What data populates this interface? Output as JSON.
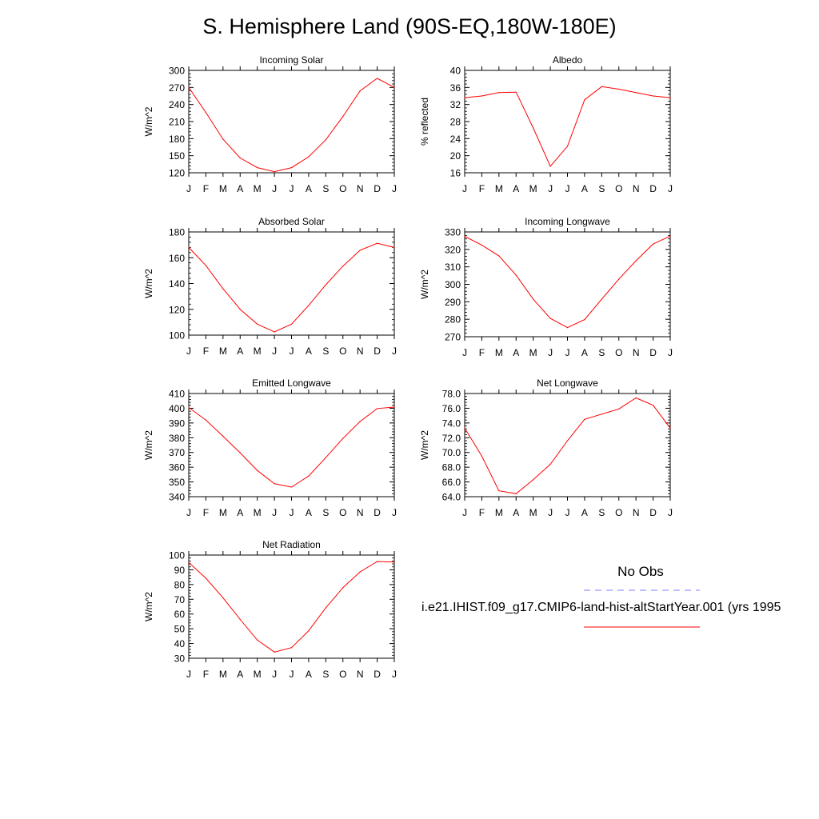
{
  "title": "S. Hemisphere Land (90S-EQ,180W-180E)",
  "months": [
    "J",
    "F",
    "M",
    "A",
    "M",
    "J",
    "J",
    "A",
    "S",
    "O",
    "N",
    "D",
    "J"
  ],
  "colors": {
    "model": "#ff0000",
    "obs": "#7f7fff",
    "axis": "#000000"
  },
  "legend": {
    "obs_label": "No Obs",
    "model_label": "i.e21.IHIST.f09_g17.CMIP6-land-hist-altStartYear.001 (yrs 1995"
  },
  "chart_data": [
    {
      "type": "line",
      "title": "Incoming Solar",
      "ylabel": "W/m^2",
      "ylim": [
        120,
        300
      ],
      "yticks": [
        "120",
        "150",
        "180",
        "210",
        "240",
        "270",
        "300"
      ],
      "categories": [
        "J",
        "F",
        "M",
        "A",
        "M",
        "J",
        "J",
        "A",
        "S",
        "O",
        "N",
        "D",
        "J"
      ],
      "series": [
        {
          "values": [
            270,
            226,
            179,
            146,
            129,
            122,
            129,
            148,
            178,
            219,
            264,
            286,
            270
          ]
        }
      ]
    },
    {
      "type": "line",
      "title": "Albedo",
      "ylabel": "% reflected",
      "ylim": [
        16,
        40
      ],
      "yticks": [
        "16",
        "20",
        "24",
        "28",
        "32",
        "36",
        "40"
      ],
      "categories": [
        "J",
        "F",
        "M",
        "A",
        "M",
        "J",
        "J",
        "A",
        "S",
        "O",
        "N",
        "D",
        "J"
      ],
      "series": [
        {
          "values": [
            33.6,
            34.0,
            34.8,
            34.9,
            26.5,
            17.5,
            22.2,
            33.1,
            36.2,
            35.6,
            34.8,
            34.0,
            33.6
          ]
        }
      ]
    },
    {
      "type": "line",
      "title": "Absorbed Solar",
      "ylabel": "W/m^2",
      "ylim": [
        100,
        180
      ],
      "yticks": [
        "100",
        "120",
        "140",
        "160",
        "180"
      ],
      "categories": [
        "J",
        "F",
        "M",
        "A",
        "M",
        "J",
        "J",
        "A",
        "S",
        "O",
        "N",
        "D",
        "J"
      ],
      "series": [
        {
          "values": [
            168,
            154,
            136,
            120,
            108.5,
            102.5,
            108.5,
            123,
            139,
            153.5,
            165.8,
            171.2,
            168
          ]
        }
      ]
    },
    {
      "type": "line",
      "title": "Incoming Longwave",
      "ylabel": "W/m^2",
      "ylim": [
        270,
        330
      ],
      "yticks": [
        "270",
        "280",
        "290",
        "300",
        "310",
        "320",
        "330"
      ],
      "categories": [
        "J",
        "F",
        "M",
        "A",
        "M",
        "J",
        "J",
        "A",
        "S",
        "O",
        "N",
        "D",
        "J"
      ],
      "series": [
        {
          "values": [
            327.5,
            322.5,
            316.3,
            305.2,
            291.5,
            280.5,
            275.2,
            279.8,
            291.5,
            303,
            313.5,
            323.1,
            327.6
          ]
        }
      ]
    },
    {
      "type": "line",
      "title": "Emitted Longwave",
      "ylabel": "W/m^2",
      "ylim": [
        340,
        410
      ],
      "yticks": [
        "340",
        "350",
        "360",
        "370",
        "380",
        "390",
        "400",
        "410"
      ],
      "categories": [
        "J",
        "F",
        "M",
        "A",
        "M",
        "J",
        "J",
        "A",
        "S",
        "O",
        "N",
        "D",
        "J"
      ],
      "series": [
        {
          "values": [
            400.5,
            392,
            381,
            369.8,
            357.8,
            348.8,
            346.5,
            354,
            366.5,
            379.5,
            391,
            399.8,
            400.8
          ]
        }
      ]
    },
    {
      "type": "line",
      "title": "Net Longwave",
      "ylabel": "W/m^2",
      "ylim": [
        64,
        78
      ],
      "yticks": [
        "64.0",
        "66.0",
        "68.0",
        "70.0",
        "72.0",
        "74.0",
        "76.0",
        "78.0"
      ],
      "categories": [
        "J",
        "F",
        "M",
        "A",
        "M",
        "J",
        "J",
        "A",
        "S",
        "O",
        "N",
        "D",
        "J"
      ],
      "series": [
        {
          "values": [
            73.3,
            69.5,
            64.8,
            64.4,
            66.3,
            68.4,
            71.6,
            74.5,
            75.2,
            75.9,
            77.4,
            76.4,
            73.3
          ]
        }
      ]
    },
    {
      "type": "line",
      "title": "Net Radiation",
      "ylabel": "W/m^2",
      "ylim": [
        30,
        100
      ],
      "yticks": [
        "30",
        "40",
        "50",
        "60",
        "70",
        "80",
        "90",
        "100"
      ],
      "categories": [
        "J",
        "F",
        "M",
        "A",
        "M",
        "J",
        "J",
        "A",
        "S",
        "O",
        "N",
        "D",
        "J"
      ],
      "series": [
        {
          "values": [
            95,
            84.3,
            71,
            56.3,
            42.3,
            34.2,
            37.2,
            48.6,
            64.2,
            77.9,
            88.6,
            95.6,
            95.3
          ]
        }
      ]
    }
  ]
}
